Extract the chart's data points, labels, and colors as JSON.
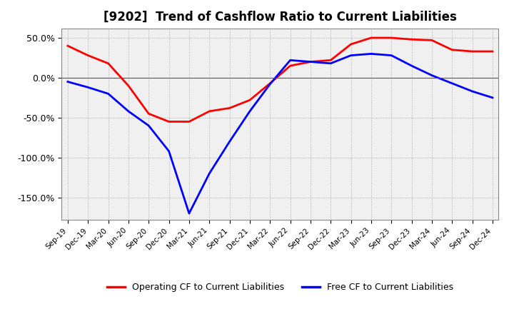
{
  "title": "[9202]  Trend of Cashflow Ratio to Current Liabilities",
  "x_labels": [
    "Sep-19",
    "Dec-19",
    "Mar-20",
    "Jun-20",
    "Sep-20",
    "Dec-20",
    "Mar-21",
    "Jun-21",
    "Sep-21",
    "Dec-21",
    "Mar-22",
    "Jun-22",
    "Sep-22",
    "Dec-22",
    "Mar-23",
    "Jun-23",
    "Sep-23",
    "Dec-23",
    "Mar-24",
    "Jun-24",
    "Sep-24",
    "Dec-24"
  ],
  "operating_cf": [
    0.4,
    0.28,
    0.18,
    -0.1,
    -0.45,
    -0.55,
    -0.55,
    -0.42,
    -0.38,
    -0.28,
    -0.07,
    0.15,
    0.2,
    0.22,
    0.42,
    0.5,
    0.5,
    0.48,
    0.47,
    0.35,
    0.33,
    0.33
  ],
  "free_cf": [
    -0.05,
    -0.12,
    -0.2,
    -0.42,
    -0.6,
    -0.92,
    -1.7,
    -1.2,
    -0.8,
    -0.42,
    -0.08,
    0.22,
    0.2,
    0.18,
    0.28,
    0.3,
    0.28,
    0.15,
    0.03,
    -0.07,
    -0.17,
    -0.25
  ],
  "operating_cf_color": "#ff0000",
  "free_cf_color": "#0000ff",
  "ylim": [
    -1.78,
    0.62
  ],
  "yticks": [
    0.5,
    0.0,
    -0.5,
    -1.0,
    -1.5
  ],
  "ytick_labels": [
    "50.0%",
    "0.0%",
    "-50.0%",
    "-100.0%",
    "-150.0%"
  ],
  "background_color": "#ffffff",
  "plot_bg_color": "#f0f0f0",
  "grid_color": "#aaaaaa",
  "title_fontsize": 12,
  "legend_labels": [
    "Operating CF to Current Liabilities",
    "Free CF to Current Liabilities"
  ]
}
